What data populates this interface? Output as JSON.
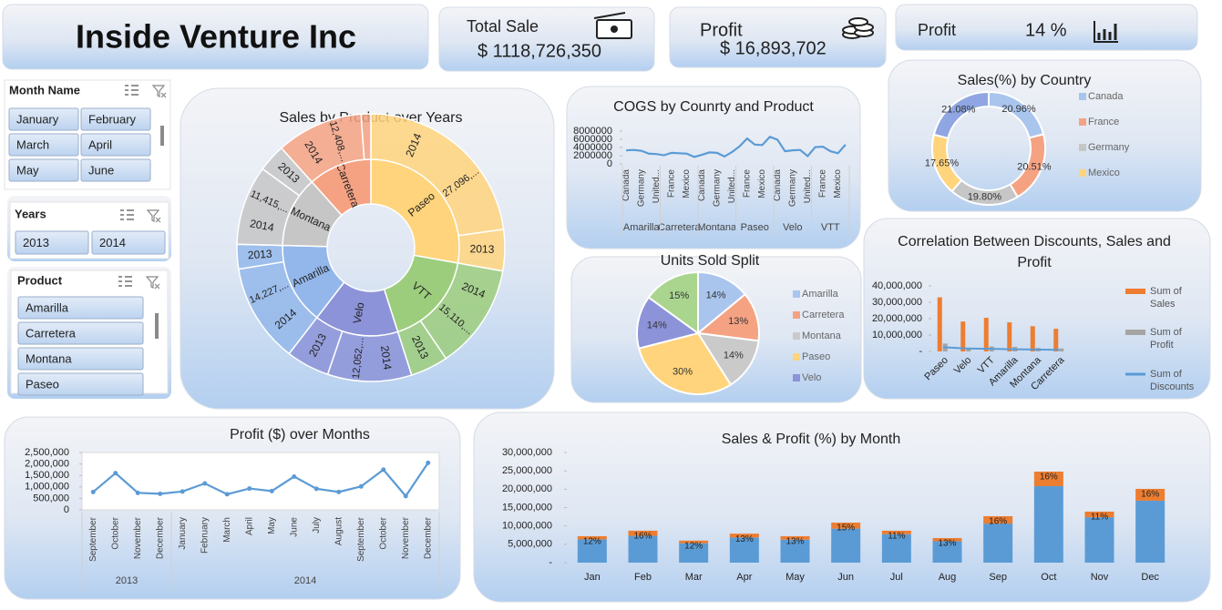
{
  "header": {
    "title": "Inside Venture Inc"
  },
  "kpis": [
    {
      "label": "Total Sale",
      "value": "$ 1118,726,350"
    },
    {
      "label": "Profit",
      "value": "$ 16,893,702"
    },
    {
      "label": "Profit",
      "value": "14 %"
    }
  ],
  "slicers": [
    {
      "title": "Month Name",
      "items": [
        "January",
        "February",
        "March",
        "April",
        "May",
        "June"
      ]
    },
    {
      "title": "Years",
      "items": [
        "2013",
        "2014"
      ]
    },
    {
      "title": "Product",
      "items": [
        "Amarilla",
        "Carretera",
        "Montana",
        "Paseo"
      ]
    }
  ],
  "chart_data": [
    {
      "type": "sunburst",
      "title": "Sales by Product over Years",
      "categories": [
        "Paseo",
        "VTT",
        "Velo",
        "Amarilla",
        "Montana",
        "Carretera"
      ],
      "colors": [
        "#ffd47c",
        "#9ccd7c",
        "#8c93d8",
        "#93b7ea",
        "#c6c6c6",
        "#f5a283"
      ],
      "series": [
        {
          "name": "2014",
          "values": [
            27096000,
            15110000,
            12052000,
            14227000,
            11415000,
            12408000
          ],
          "value_labels": [
            "27,096,...",
            "15,110,...",
            "12,052,...",
            "14,227,...",
            "11,415,...",
            "12,408,..."
          ]
        },
        {
          "name": "2013",
          "values": [
            5915000,
            5402000,
            6198000,
            3520000,
            3976000,
            1407000
          ]
        }
      ]
    },
    {
      "type": "line",
      "title": "COGS by Counrty and Product",
      "color": "#5b9bd5",
      "groups": [
        {
          "name": "Amarilla",
          "categories": [
            "Canada",
            null,
            "Germany",
            null,
            "United..."
          ],
          "values": [
            3300000,
            3400000,
            3200000,
            2500000,
            2400000
          ]
        },
        {
          "name": "Carretera",
          "categories": [
            null,
            "France",
            null,
            "Mexico",
            null
          ],
          "values": [
            2100000,
            2700000,
            2600000,
            2500000,
            1700000
          ]
        },
        {
          "name": "Montana",
          "categories": [
            "Canada",
            null,
            "Germany",
            null,
            "United..."
          ],
          "values": [
            2200000,
            2800000,
            2700000,
            1800000,
            2900000
          ]
        },
        {
          "name": "Paseo",
          "categories": [
            null,
            "France",
            null,
            "Mexico",
            null
          ],
          "values": [
            4300000,
            6200000,
            4700000,
            4600000,
            6600000
          ]
        },
        {
          "name": "Velo",
          "categories": [
            "Canada",
            null,
            "Germany",
            null,
            "United..."
          ],
          "values": [
            5900000,
            3100000,
            3300000,
            3400000,
            1900000
          ]
        },
        {
          "name": "VTT",
          "categories": [
            null,
            "France",
            null,
            "Mexico",
            null
          ],
          "values": [
            4100000,
            4200000,
            3100000,
            2600000,
            4700000
          ]
        }
      ],
      "ylim": [
        0,
        8000000
      ],
      "yticks": [
        0,
        2000000,
        4000000,
        6000000,
        8000000
      ]
    },
    {
      "type": "donut",
      "title": "Sales(%) by Country",
      "categories": [
        "Canada",
        "France",
        "Germany",
        "Mexico",
        null
      ],
      "values": [
        20.96,
        20.51,
        19.8,
        17.65,
        21.08
      ],
      "value_labels": [
        "20.96%",
        "20.51%",
        "19.80%",
        "17.65%",
        "21.08%"
      ],
      "colors": [
        "#a9c5ee",
        "#f5a283",
        "#c6c6c6",
        "#ffd47c",
        "#8fa6e2"
      ]
    },
    {
      "type": "pie",
      "title": "Units Sold Split",
      "categories": [
        "Amarilla",
        "Carretera",
        "Montana",
        "Paseo",
        "Velo",
        null
      ],
      "values": [
        14,
        13,
        14,
        30,
        14,
        15
      ],
      "value_labels": [
        "14%",
        "13%",
        "14%",
        "30%",
        "14%",
        "15%"
      ],
      "colors": [
        "#a9c5ee",
        "#f5a283",
        "#cacaca",
        "#ffd47c",
        "#8c93d8",
        "#a9d58f"
      ]
    },
    {
      "type": "combo",
      "title": "Correlation Between Discounts, Sales and Profit",
      "categories": [
        "Paseo",
        "Velo",
        "VTT",
        "Amarilla",
        "Montana",
        "Carretera"
      ],
      "series": [
        {
          "name": "Sum of Sales",
          "type": "bar",
          "color": "#ed7d31",
          "values": [
            33011000,
            18250000,
            20512000,
            17747000,
            15391000,
            13815000
          ]
        },
        {
          "name": "Sum of Profit",
          "type": "bar",
          "color": "#a5a5a5",
          "values": [
            4797000,
            2306000,
            3035000,
            2814000,
            2114000,
            1826000
          ]
        },
        {
          "name": "Sum of Discounts",
          "type": "line",
          "color": "#5b9bd5",
          "values": [
            2600000,
            1800000,
            1610000,
            1320000,
            1160000,
            1000000
          ]
        }
      ],
      "ylim": [
        0,
        40000000
      ],
      "yticks": [
        {
          "value": 0,
          "label": "-"
        },
        {
          "value": 10000000,
          "label": "10,000,000"
        },
        {
          "value": 20000000,
          "label": "20,000,000"
        },
        {
          "value": 30000000,
          "label": "30,000,000"
        },
        {
          "value": 40000000,
          "label": "40,000,000"
        }
      ]
    },
    {
      "type": "line",
      "title": "Profit ($) over Months",
      "color": "#5b9bd5",
      "markers": true,
      "groups": [
        {
          "name": "2013",
          "categories": [
            "September",
            "October",
            "November",
            "December"
          ],
          "values": [
            780000,
            1600000,
            740000,
            700000
          ]
        },
        {
          "name": "2014",
          "categories": [
            "January",
            "February",
            "March",
            "April",
            "May",
            "June",
            "July",
            "August",
            "September",
            "October",
            "November",
            "December"
          ],
          "values": [
            800000,
            1150000,
            680000,
            930000,
            820000,
            1450000,
            920000,
            780000,
            1020000,
            1750000,
            600000,
            2050000
          ]
        }
      ],
      "ylim": [
        0,
        2500000
      ],
      "yticks": [
        0,
        {
          "value": 500000,
          "label": "500,000"
        },
        {
          "value": 1000000,
          "label": "1,000,000"
        },
        {
          "value": 1500000,
          "label": "1,500,000"
        },
        {
          "value": 2000000,
          "label": "2,000,000"
        },
        {
          "value": 2500000,
          "label": "2,500,000"
        }
      ]
    },
    {
      "type": "stacked_bar",
      "title": "Sales & Profit (%) by Month",
      "categories": [
        "Jan",
        "Feb",
        "Mar",
        "Apr",
        "May",
        "Jun",
        "Jul",
        "Aug",
        "Sep",
        "Oct",
        "Nov",
        "Dec"
      ],
      "series": [
        {
          "color": "#5b9bd5",
          "values": [
            6340000,
            7300000,
            5280000,
            6870000,
            6260000,
            9260000,
            7740000,
            5830000,
            10630000,
            20830000,
            12370000,
            16880000
          ]
        },
        {
          "color": "#ed7d31",
          "values": [
            860000,
            1400000,
            720000,
            1030000,
            940000,
            1640000,
            960000,
            870000,
            2020000,
            3970000,
            1530000,
            3220000
          ],
          "percent": [
            12,
            16,
            12,
            13,
            13,
            15,
            11,
            13,
            16,
            16,
            11,
            16
          ],
          "percent_labels": [
            "12%",
            "16%",
            "12%",
            "13%",
            "13%",
            "15%",
            "11%",
            "13%",
            "16%",
            "16%",
            "11%",
            "16%"
          ]
        }
      ],
      "ylim": [
        0,
        30000000
      ],
      "yticks": [
        {
          "value": 0,
          "label": "-"
        },
        {
          "value": 5000000,
          "label": "5,000,000"
        },
        {
          "value": 10000000,
          "label": "10,000,000"
        },
        {
          "value": 15000000,
          "label": "15,000,000"
        },
        {
          "value": 20000000,
          "label": "20,000,000"
        },
        {
          "value": 25000000,
          "label": "25,000,000"
        },
        {
          "value": 30000000,
          "label": "30,000,000"
        }
      ]
    }
  ]
}
